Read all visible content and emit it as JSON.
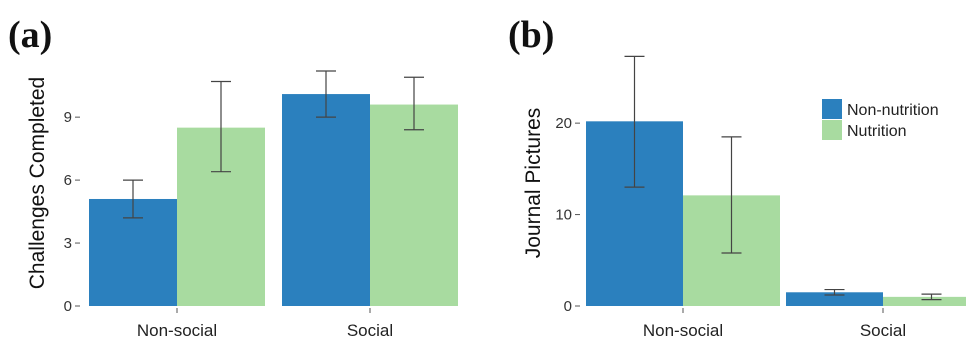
{
  "colors": {
    "non_nutrition": "#2B80BE",
    "nutrition": "#A8DBA0",
    "errorbar": "#444444",
    "axis": "#555555"
  },
  "legend": {
    "items": [
      "Non-nutrition",
      "Nutrition"
    ],
    "placement": "top-right of panel (b)"
  },
  "chart_data": [
    {
      "panel_label": "(a)",
      "type": "bar",
      "categories": [
        "Non-social",
        "Social"
      ],
      "ylabel": "Challenges Completed",
      "xlabel": "",
      "ylim": [
        0,
        12.2
      ],
      "yticks": [
        0,
        3,
        6,
        9
      ],
      "series": [
        {
          "name": "Non-nutrition",
          "values": [
            5.1,
            10.1
          ],
          "err_low": [
            4.2,
            9.0
          ],
          "err_high": [
            6.0,
            11.2
          ]
        },
        {
          "name": "Nutrition",
          "values": [
            8.5,
            9.6
          ],
          "err_low": [
            6.4,
            8.4
          ],
          "err_high": [
            10.7,
            10.9
          ]
        }
      ]
    },
    {
      "panel_label": "(b)",
      "type": "bar",
      "categories": [
        "Non-social",
        "Social"
      ],
      "ylabel": "Journal Pictures",
      "xlabel": "",
      "ylim": [
        0,
        28
      ],
      "yticks": [
        0,
        10,
        20
      ],
      "series": [
        {
          "name": "Non-nutrition",
          "values": [
            20.2,
            1.5
          ],
          "err_low": [
            13.0,
            1.2
          ],
          "err_high": [
            27.3,
            1.8
          ]
        },
        {
          "name": "Nutrition",
          "values": [
            12.1,
            1.0
          ],
          "err_low": [
            5.8,
            0.7
          ],
          "err_high": [
            18.5,
            1.3
          ]
        }
      ]
    }
  ]
}
